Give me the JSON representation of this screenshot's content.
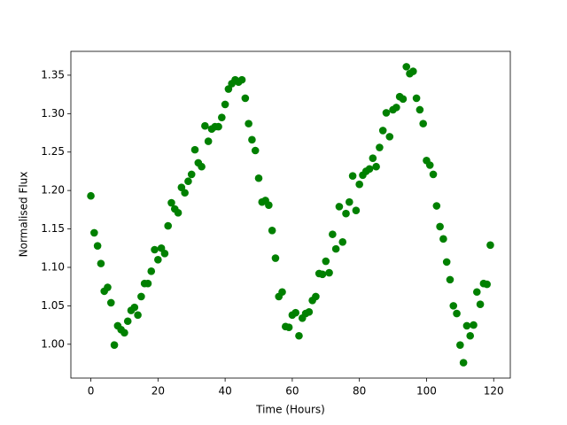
{
  "chart_data": {
    "type": "scatter",
    "xlabel": "Time (Hours)",
    "ylabel": "Normalised Flux",
    "color": "#008000",
    "x": [
      0,
      1,
      2,
      3,
      4,
      5,
      6,
      7,
      8,
      9,
      10,
      11,
      12,
      13,
      14,
      15,
      16,
      17,
      18,
      19,
      20,
      21,
      22,
      23,
      24,
      25,
      26,
      27,
      28,
      29,
      30,
      31,
      32,
      33,
      34,
      35,
      36,
      37,
      38,
      39,
      40,
      41,
      42,
      43,
      44,
      45,
      46,
      47,
      48,
      49,
      50,
      51,
      52,
      53,
      54,
      55,
      56,
      57,
      58,
      59,
      60,
      61,
      62,
      63,
      64,
      65,
      66,
      67,
      68,
      69,
      70,
      71,
      72,
      73,
      74,
      75,
      76,
      77,
      78,
      79,
      80,
      81,
      82,
      83,
      84,
      85,
      86,
      87,
      88,
      89,
      90,
      91,
      92,
      93,
      94,
      95,
      96,
      97,
      98,
      99,
      100,
      101,
      102,
      103,
      104,
      105,
      106,
      107,
      108,
      109,
      110,
      111,
      112,
      113,
      114,
      115,
      116,
      117,
      118,
      119
    ],
    "values": [
      1.193,
      1.145,
      1.128,
      1.105,
      1.069,
      1.074,
      1.054,
      0.999,
      1.024,
      1.019,
      1.015,
      1.03,
      1.044,
      1.048,
      1.038,
      1.062,
      1.079,
      1.079,
      1.095,
      1.123,
      1.11,
      1.125,
      1.118,
      1.154,
      1.184,
      1.176,
      1.171,
      1.204,
      1.197,
      1.212,
      1.221,
      1.253,
      1.236,
      1.231,
      1.284,
      1.264,
      1.28,
      1.283,
      1.283,
      1.295,
      1.312,
      1.332,
      1.339,
      1.344,
      1.341,
      1.344,
      1.32,
      1.287,
      1.266,
      1.252,
      1.216,
      1.185,
      1.187,
      1.181,
      1.148,
      1.112,
      1.062,
      1.068,
      1.023,
      1.022,
      1.038,
      1.041,
      1.011,
      1.034,
      1.04,
      1.042,
      1.057,
      1.062,
      1.092,
      1.091,
      1.108,
      1.093,
      1.143,
      1.124,
      1.179,
      1.133,
      1.17,
      1.185,
      1.219,
      1.174,
      1.208,
      1.22,
      1.225,
      1.228,
      1.242,
      1.231,
      1.256,
      1.278,
      1.301,
      1.27,
      1.305,
      1.308,
      1.322,
      1.319,
      1.361,
      1.352,
      1.355,
      1.32,
      1.305,
      1.287,
      1.239,
      1.233,
      1.221,
      1.18,
      1.153,
      1.137,
      1.107,
      1.084,
      1.05,
      1.04,
      0.999,
      0.976,
      1.024,
      1.011,
      1.025,
      1.068,
      1.052,
      1.079,
      1.078,
      1.129
    ],
    "xlim": [
      -5.95,
      124.95
    ],
    "xticks": [
      0,
      20,
      40,
      60,
      80,
      100,
      120
    ],
    "ylim": [
      0.956,
      1.381
    ],
    "yticks": [
      {
        "value": 1.0,
        "label": "1.00"
      },
      {
        "value": 1.05,
        "label": "1.05"
      },
      {
        "value": 1.1,
        "label": "1.10"
      },
      {
        "value": 1.15,
        "label": "1.15"
      },
      {
        "value": 1.2,
        "label": "1.20"
      },
      {
        "value": 1.25,
        "label": "1.25"
      },
      {
        "value": 1.3,
        "label": "1.30"
      },
      {
        "value": 1.35,
        "label": "1.35"
      }
    ]
  }
}
